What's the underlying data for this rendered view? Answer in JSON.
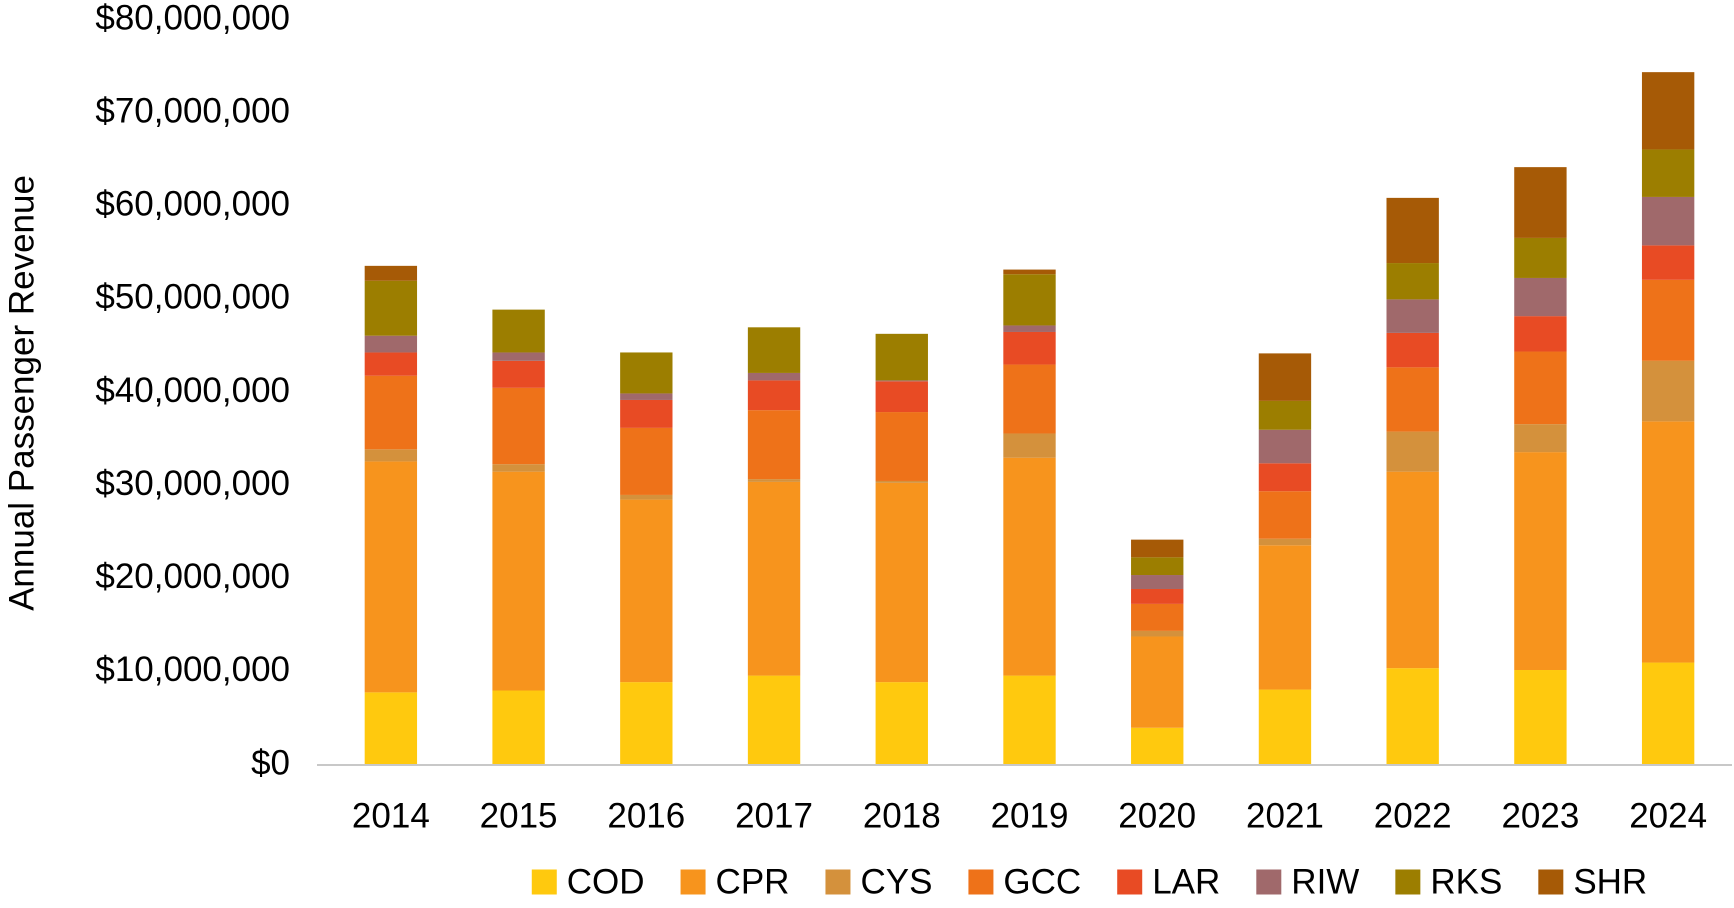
{
  "chart_data": {
    "type": "stacked_bar",
    "y_label": "Annual Passenger Revenue",
    "categories": [
      "2014",
      "2015",
      "2016",
      "2017",
      "2018",
      "2019",
      "2020",
      "2021",
      "2022",
      "2023",
      "2024"
    ],
    "series": [
      {
        "name": "COD",
        "color": "#ffc90e",
        "values": [
          7800000,
          8000000,
          8900000,
          9600000,
          8900000,
          9600000,
          4000000,
          8100000,
          10400000,
          10200000,
          11000000
        ]
      },
      {
        "name": "CPR",
        "color": "#f7941d",
        "values": [
          24800000,
          23500000,
          19600000,
          20800000,
          21400000,
          23400000,
          9800000,
          15500000,
          21100000,
          23400000,
          25900000
        ]
      },
      {
        "name": "CYS",
        "color": "#d4913c",
        "values": [
          1300000,
          800000,
          500000,
          300000,
          200000,
          2600000,
          600000,
          700000,
          4300000,
          3000000,
          6500000
        ]
      },
      {
        "name": "GCC",
        "color": "#ee7219",
        "values": [
          7900000,
          8200000,
          7200000,
          7400000,
          7400000,
          7400000,
          2900000,
          5100000,
          6900000,
          7800000,
          8700000
        ]
      },
      {
        "name": "LAR",
        "color": "#e84b24",
        "values": [
          2500000,
          2900000,
          3000000,
          3200000,
          3300000,
          3500000,
          1600000,
          3000000,
          3700000,
          3800000,
          3700000
        ]
      },
      {
        "name": "RIW",
        "color": "#a0696b",
        "values": [
          1800000,
          900000,
          700000,
          800000,
          100000,
          700000,
          1500000,
          3600000,
          3600000,
          4100000,
          5200000
        ]
      },
      {
        "name": "RKS",
        "color": "#9c7e00",
        "values": [
          5900000,
          4600000,
          4400000,
          4900000,
          5000000,
          5500000,
          1900000,
          3100000,
          3900000,
          4300000,
          5100000
        ]
      },
      {
        "name": "SHR",
        "color": "#a65a06",
        "values": [
          1600000,
          0,
          0,
          0,
          0,
          500000,
          1900000,
          5100000,
          7000000,
          7600000,
          8300000
        ]
      }
    ],
    "ylim": [
      0,
      80000000
    ],
    "yticks": [
      {
        "value": 0,
        "label": "$0"
      },
      {
        "value": 10000000,
        "label": "$10,000,000"
      },
      {
        "value": 20000000,
        "label": "$20,000,000"
      },
      {
        "value": 30000000,
        "label": "$30,000,000"
      },
      {
        "value": 40000000,
        "label": "$40,000,000"
      },
      {
        "value": 50000000,
        "label": "$50,000,000"
      },
      {
        "value": 60000000,
        "label": "$60,000,000"
      },
      {
        "value": 70000000,
        "label": "$70,000,000"
      },
      {
        "value": 80000000,
        "label": "$80,000,000"
      }
    ],
    "grid": false,
    "legend": "bottom"
  }
}
